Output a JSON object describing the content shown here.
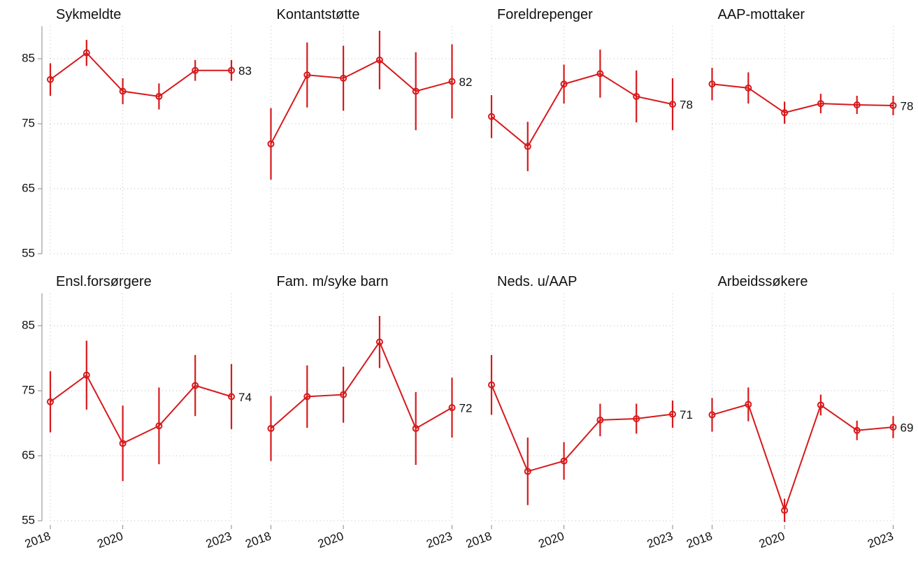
{
  "chart_data": [
    {
      "type": "line",
      "title": "Sykmeldte",
      "x": [
        2018,
        2019,
        2020,
        2021,
        2022,
        2023
      ],
      "values": [
        81.8,
        85.9,
        80.0,
        79.2,
        83.2,
        83.2
      ],
      "errors": [
        2.5,
        2.0,
        2.0,
        2.0,
        1.6,
        1.6
      ],
      "value_labels": [
        null,
        null,
        null,
        null,
        null,
        "83"
      ],
      "color": "#d7191c",
      "xlim": [
        2018,
        2023
      ],
      "xticks": [
        2018,
        2020,
        2023
      ],
      "ylim": [
        55,
        90
      ],
      "yticks": [
        55,
        65,
        75,
        85
      ],
      "grid": true
    },
    {
      "type": "line",
      "title": "Kontantstøtte",
      "x": [
        2018,
        2019,
        2020,
        2021,
        2022,
        2023
      ],
      "values": [
        71.9,
        82.5,
        82.0,
        84.8,
        80.0,
        81.5
      ],
      "errors": [
        5.5,
        5.0,
        5.0,
        4.5,
        6.0,
        5.7
      ],
      "value_labels": [
        null,
        null,
        null,
        null,
        null,
        "82"
      ],
      "color": "#d7191c",
      "xlim": [
        2018,
        2023
      ],
      "xticks": [
        2018,
        2020,
        2023
      ],
      "ylim": [
        55,
        90
      ],
      "yticks": [
        55,
        65,
        75,
        85
      ],
      "grid": true
    },
    {
      "type": "line",
      "title": "Foreldrepenger",
      "x": [
        2018,
        2019,
        2020,
        2021,
        2022,
        2023
      ],
      "values": [
        76.1,
        71.5,
        81.1,
        82.7,
        79.2,
        78.0
      ],
      "errors": [
        3.3,
        3.8,
        3.0,
        3.7,
        4.0,
        4.0
      ],
      "value_labels": [
        null,
        null,
        null,
        null,
        null,
        "78"
      ],
      "color": "#d7191c",
      "xlim": [
        2018,
        2023
      ],
      "xticks": [
        2018,
        2020,
        2023
      ],
      "ylim": [
        55,
        90
      ],
      "yticks": [
        55,
        65,
        75,
        85
      ],
      "grid": true
    },
    {
      "type": "line",
      "title": "AAP-mottaker",
      "x": [
        2018,
        2019,
        2020,
        2021,
        2022,
        2023
      ],
      "values": [
        81.1,
        80.5,
        76.7,
        78.1,
        77.9,
        77.8
      ],
      "errors": [
        2.5,
        2.4,
        1.7,
        1.5,
        1.4,
        1.5
      ],
      "value_labels": [
        null,
        null,
        null,
        null,
        null,
        "78"
      ],
      "color": "#d7191c",
      "xlim": [
        2018,
        2023
      ],
      "xticks": [
        2018,
        2020,
        2023
      ],
      "ylim": [
        55,
        90
      ],
      "yticks": [
        55,
        65,
        75,
        85
      ],
      "grid": true
    },
    {
      "type": "line",
      "title": "Ensl.forsørgere",
      "x": [
        2018,
        2019,
        2020,
        2021,
        2022,
        2023
      ],
      "values": [
        73.3,
        77.4,
        66.9,
        69.6,
        75.8,
        74.1
      ],
      "errors": [
        4.7,
        5.3,
        5.8,
        5.9,
        4.7,
        5.0
      ],
      "value_labels": [
        null,
        null,
        null,
        null,
        null,
        "74"
      ],
      "color": "#d7191c",
      "xlim": [
        2018,
        2023
      ],
      "xticks": [
        2018,
        2020,
        2023
      ],
      "ylim": [
        55,
        90
      ],
      "yticks": [
        55,
        65,
        75,
        85
      ],
      "grid": true
    },
    {
      "type": "line",
      "title": "Fam. m/syke barn",
      "x": [
        2018,
        2019,
        2020,
        2021,
        2022,
        2023
      ],
      "values": [
        69.2,
        74.1,
        74.4,
        82.5,
        69.2,
        72.4
      ],
      "errors": [
        5.0,
        4.8,
        4.3,
        4.0,
        5.6,
        4.6
      ],
      "value_labels": [
        null,
        null,
        null,
        null,
        null,
        "72"
      ],
      "color": "#d7191c",
      "xlim": [
        2018,
        2023
      ],
      "xticks": [
        2018,
        2020,
        2023
      ],
      "ylim": [
        55,
        90
      ],
      "yticks": [
        55,
        65,
        75,
        85
      ],
      "grid": true
    },
    {
      "type": "line",
      "title": "Neds. u/AAP",
      "x": [
        2018,
        2019,
        2020,
        2021,
        2022,
        2023
      ],
      "values": [
        75.9,
        62.6,
        64.2,
        70.5,
        70.7,
        71.4
      ],
      "errors": [
        4.6,
        5.2,
        2.9,
        2.5,
        2.3,
        2.1
      ],
      "value_labels": [
        null,
        null,
        null,
        null,
        null,
        "71"
      ],
      "color": "#d7191c",
      "xlim": [
        2018,
        2023
      ],
      "xticks": [
        2018,
        2020,
        2023
      ],
      "ylim": [
        55,
        90
      ],
      "yticks": [
        55,
        65,
        75,
        85
      ],
      "grid": true
    },
    {
      "type": "line",
      "title": "Arbeidssøkere",
      "x": [
        2018,
        2019,
        2020,
        2021,
        2022,
        2023
      ],
      "values": [
        71.3,
        72.9,
        56.6,
        72.8,
        68.9,
        69.4
      ],
      "errors": [
        2.6,
        2.6,
        1.8,
        1.6,
        1.5,
        1.7
      ],
      "value_labels": [
        null,
        null,
        null,
        null,
        null,
        "69"
      ],
      "color": "#d7191c",
      "xlim": [
        2018,
        2023
      ],
      "xticks": [
        2018,
        2020,
        2023
      ],
      "ylim": [
        55,
        90
      ],
      "yticks": [
        55,
        65,
        75,
        85
      ],
      "grid": true
    }
  ]
}
